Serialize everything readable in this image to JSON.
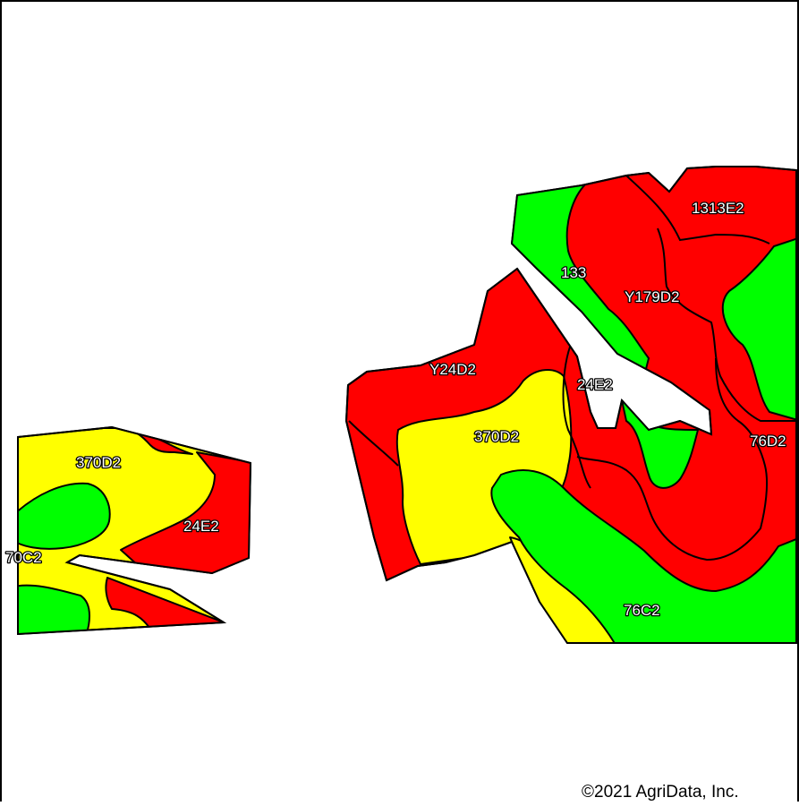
{
  "colors": {
    "red": "#ff0000",
    "yellow": "#ffff00",
    "green": "#00ff00",
    "gap": "#ffffff",
    "outline": "#000000"
  },
  "labels": {
    "west_370D2": "370D2",
    "west_24E2": "24E2",
    "west_70C2": "70C2",
    "east_1313E2": "1313E2",
    "east_133": "133",
    "east_Y179D2": "Y179D2",
    "east_Y24D2": "Y24D2",
    "east_24E2": "24E2",
    "east_370D2": "370D2",
    "east_76D2": "76D2",
    "east_76C2": "76C2"
  },
  "copyright": "©2021 AgriData, Inc."
}
